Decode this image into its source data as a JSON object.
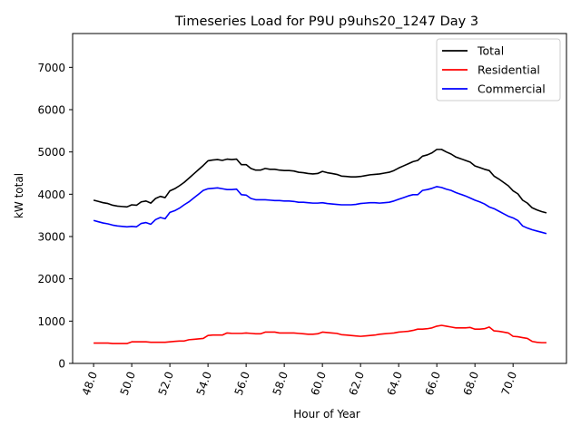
{
  "chart_data": {
    "type": "line",
    "title": "Timeseries Load for P9U p9uhs20_1247  Day 3",
    "xlabel": "Hour of Year",
    "ylabel": "kW total",
    "xlim": [
      46.9,
      72.8
    ],
    "ylim": [
      0,
      7800
    ],
    "xticks": [
      48,
      50,
      52,
      54,
      56,
      58,
      60,
      62,
      64,
      66,
      68,
      70
    ],
    "xtick_labels": [
      "48.0",
      "50.0",
      "52.0",
      "54.0",
      "56.0",
      "58.0",
      "60.0",
      "62.0",
      "64.0",
      "66.0",
      "68.0",
      "70.0"
    ],
    "yticks": [
      0,
      1000,
      2000,
      3000,
      4000,
      5000,
      6000,
      7000
    ],
    "ytick_labels": [
      "0",
      "1000",
      "2000",
      "3000",
      "4000",
      "5000",
      "6000",
      "7000"
    ],
    "grid": false,
    "legend_position": "top-right",
    "x": [
      48.0,
      48.25,
      48.5,
      48.75,
      49.0,
      49.25,
      49.5,
      49.75,
      50.0,
      50.25,
      50.5,
      50.75,
      51.0,
      51.25,
      51.5,
      51.75,
      52.0,
      52.25,
      52.5,
      52.75,
      53.0,
      53.25,
      53.5,
      53.75,
      54.0,
      54.25,
      54.5,
      54.75,
      55.0,
      55.25,
      55.5,
      55.75,
      56.0,
      56.25,
      56.5,
      56.75,
      57.0,
      57.25,
      57.5,
      57.75,
      58.0,
      58.25,
      58.5,
      58.75,
      59.0,
      59.25,
      59.5,
      59.75,
      60.0,
      60.25,
      60.5,
      60.75,
      61.0,
      61.25,
      61.5,
      61.75,
      62.0,
      62.25,
      62.5,
      62.75,
      63.0,
      63.25,
      63.5,
      63.75,
      64.0,
      64.25,
      64.5,
      64.75,
      65.0,
      65.25,
      65.5,
      65.75,
      66.0,
      66.25,
      66.5,
      66.75,
      67.0,
      67.25,
      67.5,
      67.75,
      68.0,
      68.25,
      68.5,
      68.75,
      69.0,
      69.25,
      69.5,
      69.75,
      70.0,
      70.25,
      70.5,
      70.75,
      71.0,
      71.25,
      71.5,
      71.75
    ],
    "series": [
      {
        "name": "Total",
        "color": "#000000",
        "values": [
          3860,
          3830,
          3800,
          3780,
          3740,
          3720,
          3710,
          3700,
          3750,
          3740,
          3820,
          3840,
          3790,
          3900,
          3950,
          3920,
          4080,
          4130,
          4200,
          4280,
          4380,
          4480,
          4580,
          4680,
          4790,
          4810,
          4820,
          4800,
          4830,
          4820,
          4830,
          4700,
          4700,
          4610,
          4570,
          4570,
          4610,
          4590,
          4590,
          4570,
          4560,
          4560,
          4550,
          4520,
          4510,
          4490,
          4480,
          4490,
          4540,
          4510,
          4490,
          4470,
          4430,
          4420,
          4410,
          4410,
          4420,
          4440,
          4460,
          4470,
          4480,
          4500,
          4520,
          4560,
          4620,
          4670,
          4720,
          4770,
          4800,
          4900,
          4930,
          4980,
          5060,
          5060,
          5000,
          4950,
          4880,
          4840,
          4800,
          4760,
          4670,
          4630,
          4590,
          4560,
          4430,
          4360,
          4280,
          4200,
          4080,
          4010,
          3860,
          3790,
          3680,
          3630,
          3590,
          3560
        ]
      },
      {
        "name": "Residential",
        "color": "#ff0000",
        "values": [
          480,
          480,
          480,
          480,
          470,
          470,
          470,
          470,
          510,
          510,
          510,
          510,
          500,
          500,
          500,
          500,
          510,
          520,
          530,
          530,
          560,
          570,
          580,
          590,
          660,
          670,
          670,
          670,
          720,
          710,
          710,
          710,
          720,
          710,
          700,
          700,
          740,
          740,
          740,
          720,
          720,
          720,
          720,
          710,
          700,
          690,
          690,
          700,
          740,
          730,
          720,
          710,
          680,
          670,
          660,
          650,
          640,
          650,
          660,
          670,
          690,
          700,
          710,
          720,
          740,
          750,
          760,
          780,
          810,
          810,
          820,
          840,
          880,
          900,
          880,
          860,
          840,
          840,
          840,
          850,
          810,
          810,
          820,
          860,
          770,
          760,
          740,
          720,
          640,
          630,
          610,
          590,
          520,
          500,
          490,
          490
        ]
      },
      {
        "name": "Commercial",
        "color": "#0000ff",
        "values": [
          3380,
          3350,
          3320,
          3300,
          3270,
          3250,
          3240,
          3230,
          3240,
          3230,
          3310,
          3330,
          3290,
          3400,
          3450,
          3420,
          3570,
          3610,
          3670,
          3750,
          3820,
          3910,
          4000,
          4090,
          4130,
          4140,
          4150,
          4130,
          4110,
          4110,
          4120,
          3990,
          3980,
          3900,
          3870,
          3870,
          3870,
          3860,
          3850,
          3850,
          3840,
          3840,
          3830,
          3810,
          3810,
          3800,
          3790,
          3790,
          3800,
          3780,
          3770,
          3760,
          3750,
          3750,
          3750,
          3760,
          3780,
          3790,
          3800,
          3800,
          3790,
          3800,
          3810,
          3840,
          3880,
          3920,
          3960,
          3990,
          3990,
          4090,
          4110,
          4140,
          4180,
          4160,
          4120,
          4090,
          4040,
          4000,
          3960,
          3910,
          3860,
          3820,
          3770,
          3700,
          3660,
          3600,
          3540,
          3480,
          3440,
          3380,
          3250,
          3200,
          3160,
          3130,
          3100,
          3070
        ]
      }
    ]
  },
  "style": {
    "axis_color": "#000000",
    "background": "#ffffff"
  }
}
